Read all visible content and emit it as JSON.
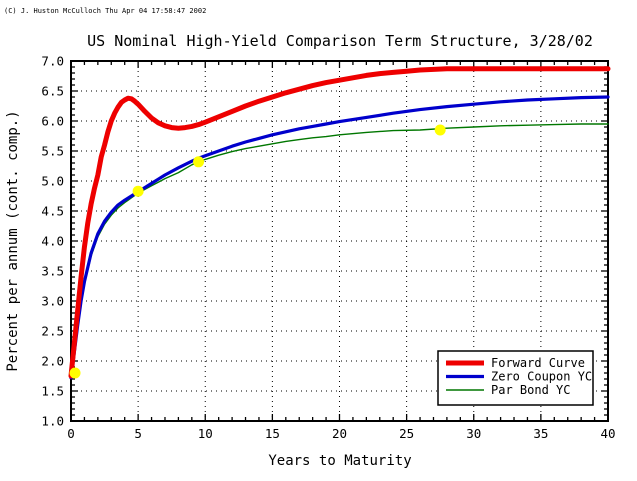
{
  "copyright": "(C) J. Huston McCulloch Thu Apr 04 17:58:47 2002",
  "chart_data": {
    "type": "line",
    "title": "US Nominal High-Yield Comparison Term Structure, 3/28/02",
    "xlabel": "Years to Maturity",
    "ylabel": "Percent per annum (cont. comp.)",
    "xlim": [
      0,
      40
    ],
    "ylim": [
      1.0,
      7.0
    ],
    "x_tick_values": [
      0,
      5,
      10,
      15,
      20,
      25,
      30,
      35,
      40
    ],
    "x_tick_labels": [
      "0",
      "5",
      "10",
      "15",
      "20",
      "25",
      "30",
      "35",
      "40"
    ],
    "y_tick_values": [
      1.0,
      1.5,
      2.0,
      2.5,
      3.0,
      3.5,
      4.0,
      4.5,
      5.0,
      5.5,
      6.0,
      6.5,
      7.0
    ],
    "y_tick_labels": [
      "1.0",
      "1.5",
      "2.0",
      "2.5",
      "3.0",
      "3.5",
      "4.0",
      "4.5",
      "5.0",
      "5.5",
      "6.0",
      "6.5",
      "7.0"
    ],
    "x_minor_step": 1,
    "y_minor_step": 0.1,
    "grid": {
      "style": "dotted",
      "color": "#000000",
      "x_values": [
        5,
        10,
        15,
        20,
        25,
        30,
        35
      ],
      "y_values": [
        1.5,
        2.0,
        2.5,
        3.0,
        3.5,
        4.0,
        4.5,
        5.0,
        5.5,
        6.0,
        6.5
      ]
    },
    "legend": {
      "position": "lower-right"
    },
    "series": [
      {
        "name": "Forward Curve",
        "color": "#ee0000",
        "width": 5,
        "x": [
          0,
          0.25,
          0.5,
          0.75,
          1,
          1.25,
          1.5,
          1.75,
          2,
          2.25,
          2.5,
          2.75,
          3,
          3.25,
          3.5,
          3.75,
          4,
          4.25,
          4.5,
          4.75,
          5,
          5.5,
          6,
          6.5,
          7,
          7.5,
          8,
          8.5,
          9,
          9.5,
          10,
          11,
          12,
          13,
          14,
          15,
          16,
          17,
          18,
          19,
          20,
          21,
          22,
          23,
          24,
          25,
          26,
          27,
          28,
          30,
          32,
          34,
          36,
          38,
          40
        ],
        "y": [
          1.75,
          2.3,
          2.85,
          3.4,
          3.9,
          4.3,
          4.62,
          4.88,
          5.1,
          5.4,
          5.6,
          5.82,
          6.0,
          6.13,
          6.23,
          6.31,
          6.35,
          6.38,
          6.37,
          6.33,
          6.28,
          6.16,
          6.05,
          5.97,
          5.92,
          5.89,
          5.88,
          5.89,
          5.91,
          5.94,
          5.98,
          6.07,
          6.16,
          6.25,
          6.33,
          6.4,
          6.47,
          6.53,
          6.59,
          6.64,
          6.68,
          6.72,
          6.76,
          6.79,
          6.81,
          6.83,
          6.85,
          6.86,
          6.87,
          6.87,
          6.87,
          6.87,
          6.87,
          6.87,
          6.87
        ]
      },
      {
        "name": "Zero Coupon YC",
        "color": "#0000cc",
        "width": 3.2,
        "x": [
          0,
          0.25,
          0.5,
          0.75,
          1,
          1.5,
          2,
          2.5,
          3,
          3.5,
          4,
          4.5,
          5,
          5.5,
          6,
          6.5,
          7,
          8,
          9,
          9.5,
          10,
          11,
          12,
          13,
          14,
          15,
          16,
          17,
          18,
          19,
          20,
          22,
          24,
          26,
          28,
          30,
          32,
          34,
          36,
          38,
          40
        ],
        "y": [
          1.72,
          2.15,
          2.6,
          3.0,
          3.32,
          3.8,
          4.12,
          4.33,
          4.48,
          4.6,
          4.68,
          4.75,
          4.82,
          4.89,
          4.96,
          5.03,
          5.1,
          5.22,
          5.33,
          5.38,
          5.42,
          5.5,
          5.58,
          5.65,
          5.71,
          5.77,
          5.82,
          5.87,
          5.91,
          5.95,
          5.99,
          6.06,
          6.13,
          6.19,
          6.24,
          6.28,
          6.32,
          6.35,
          6.37,
          6.39,
          6.4
        ]
      },
      {
        "name": "Par Bond YC",
        "color": "#007700",
        "width": 1.4,
        "x": [
          0,
          0.25,
          0.5,
          0.75,
          1,
          1.5,
          2,
          2.5,
          3,
          3.5,
          4,
          4.5,
          5,
          5.5,
          6,
          6.5,
          7,
          8,
          9,
          9.5,
          10,
          11,
          12,
          13,
          14,
          15,
          16,
          17,
          18,
          19,
          20,
          22,
          24,
          26,
          28,
          30,
          32,
          34,
          36,
          38,
          40
        ],
        "y": [
          1.72,
          2.12,
          2.55,
          2.95,
          3.28,
          3.75,
          4.07,
          4.28,
          4.43,
          4.55,
          4.64,
          4.72,
          4.8,
          4.86,
          4.92,
          4.98,
          5.04,
          5.14,
          5.27,
          5.32,
          5.36,
          5.43,
          5.49,
          5.54,
          5.58,
          5.62,
          5.66,
          5.69,
          5.72,
          5.74,
          5.77,
          5.81,
          5.84,
          5.85,
          5.88,
          5.9,
          5.92,
          5.93,
          5.94,
          5.95,
          5.95
        ]
      }
    ],
    "markers": {
      "name": "knot-points",
      "color": "#ffff00",
      "points": [
        [
          0.3,
          1.8
        ],
        [
          5.0,
          4.83
        ],
        [
          9.5,
          5.32
        ],
        [
          27.5,
          5.85
        ]
      ]
    }
  }
}
